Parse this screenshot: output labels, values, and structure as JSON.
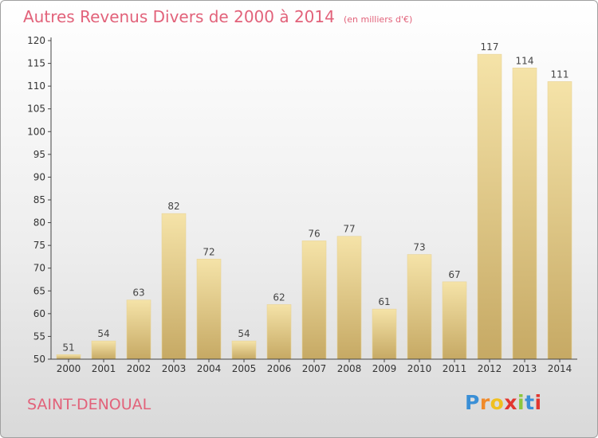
{
  "title": "Autres Revenus Divers de 2000 à 2014",
  "subtitle": "(en milliers d'€)",
  "commune": "SAINT-DENOUAL",
  "logo": {
    "letters": [
      "P",
      "r",
      "o",
      "x",
      "i",
      "t",
      "i"
    ],
    "colors": [
      "#3a8fd6",
      "#f08a2a",
      "#f0c020",
      "#e2362f",
      "#8cc63e",
      "#3a8fd6",
      "#e2362f"
    ]
  },
  "colors": {
    "title": "#e2627a",
    "bar_top": "#f5e3a8",
    "bar_bottom": "#c6a964",
    "axis": "#444444"
  },
  "chart_data": {
    "type": "bar",
    "categories": [
      "2000",
      "2001",
      "2002",
      "2003",
      "2004",
      "2005",
      "2006",
      "2007",
      "2008",
      "2009",
      "2010",
      "2011",
      "2012",
      "2013",
      "2014"
    ],
    "values": [
      51,
      54,
      63,
      82,
      72,
      54,
      62,
      76,
      77,
      61,
      73,
      67,
      117,
      114,
      111
    ],
    "ylim": [
      50,
      120
    ],
    "yticks": [
      50,
      55,
      60,
      65,
      70,
      75,
      80,
      85,
      90,
      95,
      100,
      105,
      110,
      115,
      120
    ],
    "grid": false
  }
}
